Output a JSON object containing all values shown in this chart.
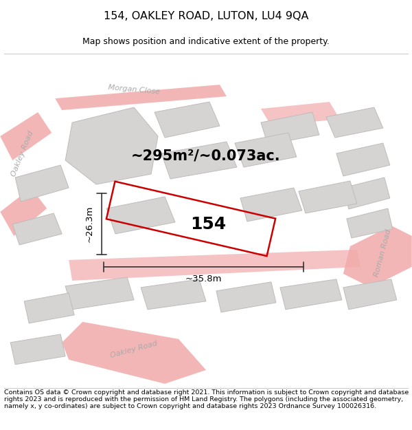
{
  "title": "154, OAKLEY ROAD, LUTON, LU4 9QA",
  "subtitle": "Map shows position and indicative extent of the property.",
  "footer": "Contains OS data © Crown copyright and database right 2021. This information is subject to Crown copyright and database rights 2023 and is reproduced with the permission of HM Land Registry. The polygons (including the associated geometry, namely x, y co-ordinates) are subject to Crown copyright and database rights 2023 Ordnance Survey 100026316.",
  "area_label": "~295m²/~0.073ac.",
  "property_number": "154",
  "dim_width": "~35.8m",
  "dim_height": "~26.3m",
  "map_bg": "#f7f4f4",
  "road_color": "#f2aaaa",
  "building_color": "#d6d3d3",
  "building_edge": "#bfbbbb",
  "highlight_color": "#cc0000",
  "title_fontsize": 11.5,
  "subtitle_fontsize": 9,
  "footer_fontsize": 6.8
}
